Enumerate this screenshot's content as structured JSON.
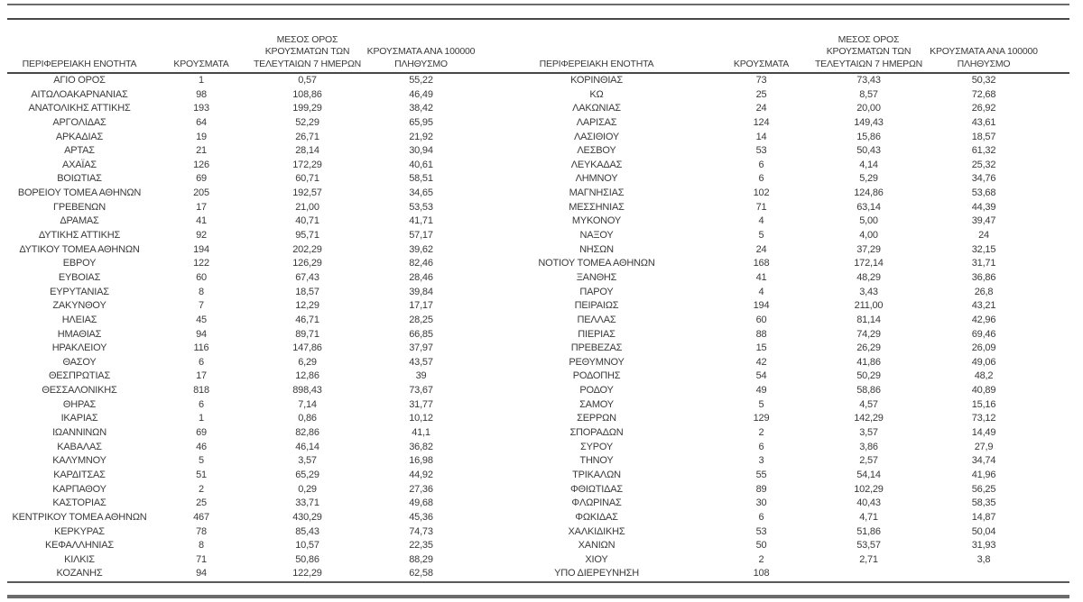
{
  "document": {
    "type": "regional-covid-cases-table",
    "language": "el"
  },
  "colors": {
    "text": "#3a3a3a",
    "rule_light": "#6b6b6b",
    "rule_dark": "#474747",
    "table_bottom_rule": "#5a5a5a",
    "background": "#ffffff"
  },
  "table": {
    "left_header": {
      "region": "ΠΕΡΙΦΕΡΕΙΑΚΗ ΕΝΟΤΗΤΑ",
      "cases": "ΚΡΟΥΣΜΑΤΑ",
      "avg7": "ΜΕΣΟΣ ΟΡΟΣ\nΚΡΟΥΣΜΑΤΩΝ ΤΩΝ\nΤΕΛΕΥΤΑΙΩΝ 7 ΗΜΕΡΩΝ",
      "per100k": "ΚΡΟΥΣΜΑΤΑ ΑΝΑ 100000\nΠΛΗΘΥΣΜΟ"
    },
    "right_header": {
      "region": "ΠΕΡΙΦΕΡΕΙΑΚΗ ΕΝΟΤΗΤΑ",
      "cases": "ΚΡΟΥΣΜΑΤΑ",
      "avg7": "ΜΕΣΟΣ ΟΡΟΣ\nΚΡΟΥΣΜΑΤΩΝ ΤΩΝ\nΤΕΛΕΥΤΑΙΩΝ 7 ΗΜΕΡΩΝ",
      "per100k": "ΚΡΟΥΣΜΑΤΑ ΑΝΑ 100000\nΠΛΗΘΥΣΜΟ"
    },
    "rows": [
      {
        "left": [
          "ΑΓΙΟ ΟΡΟΣ",
          "1",
          "0,57",
          "55,22"
        ],
        "right": [
          "ΚΟΡΙΝΘΙΑΣ",
          "73",
          "73,43",
          "50,32"
        ]
      },
      {
        "left": [
          "ΑΙΤΩΛΟΑΚΑΡΝΑΝΙΑΣ",
          "98",
          "108,86",
          "46,49"
        ],
        "right": [
          "ΚΩ",
          "25",
          "8,57",
          "72,68"
        ]
      },
      {
        "left": [
          "ΑΝΑΤΟΛΙΚΗΣ ΑΤΤΙΚΗΣ",
          "193",
          "199,29",
          "38,42"
        ],
        "right": [
          "ΛΑΚΩΝΙΑΣ",
          "24",
          "20,00",
          "26,92"
        ]
      },
      {
        "left": [
          "ΑΡΓΟΛΙΔΑΣ",
          "64",
          "52,29",
          "65,95"
        ],
        "right": [
          "ΛΑΡΙΣΑΣ",
          "124",
          "149,43",
          "43,61"
        ]
      },
      {
        "left": [
          "ΑΡΚΑΔΙΑΣ",
          "19",
          "26,71",
          "21,92"
        ],
        "right": [
          "ΛΑΣΙΘΙΟΥ",
          "14",
          "15,86",
          "18,57"
        ]
      },
      {
        "left": [
          "ΑΡΤΑΣ",
          "21",
          "28,14",
          "30,94"
        ],
        "right": [
          "ΛΕΣΒΟΥ",
          "53",
          "50,43",
          "61,32"
        ]
      },
      {
        "left": [
          "ΑΧΑΪΑΣ",
          "126",
          "172,29",
          "40,61"
        ],
        "right": [
          "ΛΕΥΚΑΔΑΣ",
          "6",
          "4,14",
          "25,32"
        ]
      },
      {
        "left": [
          "ΒΟΙΩΤΙΑΣ",
          "69",
          "60,71",
          "58,51"
        ],
        "right": [
          "ΛΗΜΝΟΥ",
          "6",
          "5,29",
          "34,76"
        ]
      },
      {
        "left": [
          "ΒΟΡΕΙΟΥ ΤΟΜΕΑ ΑΘΗΝΩΝ",
          "205",
          "192,57",
          "34,65"
        ],
        "right": [
          "ΜΑΓΝΗΣΙΑΣ",
          "102",
          "124,86",
          "53,68"
        ]
      },
      {
        "left": [
          "ΓΡΕΒΕΝΩΝ",
          "17",
          "21,00",
          "53,53"
        ],
        "right": [
          "ΜΕΣΣΗΝΙΑΣ",
          "71",
          "63,14",
          "44,39"
        ]
      },
      {
        "left": [
          "ΔΡΑΜΑΣ",
          "41",
          "40,71",
          "41,71"
        ],
        "right": [
          "ΜΥΚΟΝΟΥ",
          "4",
          "5,00",
          "39,47"
        ]
      },
      {
        "left": [
          "ΔΥΤΙΚΗΣ ΑΤΤΙΚΗΣ",
          "92",
          "95,71",
          "57,17"
        ],
        "right": [
          "ΝΑΞΟΥ",
          "5",
          "4,00",
          "24"
        ]
      },
      {
        "left": [
          "ΔΥΤΙΚΟΥ ΤΟΜΕΑ ΑΘΗΝΩΝ",
          "194",
          "202,29",
          "39,62"
        ],
        "right": [
          "ΝΗΣΩΝ",
          "24",
          "37,29",
          "32,15"
        ]
      },
      {
        "left": [
          "ΕΒΡΟΥ",
          "122",
          "126,29",
          "82,46"
        ],
        "right": [
          "ΝΟΤΙΟΥ ΤΟΜΕΑ ΑΘΗΝΩΝ",
          "168",
          "172,14",
          "31,71"
        ]
      },
      {
        "left": [
          "ΕΥΒΟΙΑΣ",
          "60",
          "67,43",
          "28,46"
        ],
        "right": [
          "ΞΑΝΘΗΣ",
          "41",
          "48,29",
          "36,86"
        ]
      },
      {
        "left": [
          "ΕΥΡΥΤΑΝΙΑΣ",
          "8",
          "18,57",
          "39,84"
        ],
        "right": [
          "ΠΑΡΟΥ",
          "4",
          "3,43",
          "26,8"
        ]
      },
      {
        "left": [
          "ΖΑΚΥΝΘΟΥ",
          "7",
          "12,29",
          "17,17"
        ],
        "right": [
          "ΠΕΙΡΑΙΩΣ",
          "194",
          "211,00",
          "43,21"
        ]
      },
      {
        "left": [
          "ΗΛΕΙΑΣ",
          "45",
          "46,71",
          "28,25"
        ],
        "right": [
          "ΠΕΛΛΑΣ",
          "60",
          "81,14",
          "42,96"
        ]
      },
      {
        "left": [
          "ΗΜΑΘΙΑΣ",
          "94",
          "89,71",
          "66,85"
        ],
        "right": [
          "ΠΙΕΡΙΑΣ",
          "88",
          "74,29",
          "69,46"
        ]
      },
      {
        "left": [
          "ΗΡΑΚΛΕΙΟΥ",
          "116",
          "147,86",
          "37,97"
        ],
        "right": [
          "ΠΡΕΒΕΖΑΣ",
          "15",
          "26,29",
          "26,09"
        ]
      },
      {
        "left": [
          "ΘΑΣΟΥ",
          "6",
          "6,29",
          "43,57"
        ],
        "right": [
          "ΡΕΘΥΜΝΟΥ",
          "42",
          "41,86",
          "49,06"
        ]
      },
      {
        "left": [
          "ΘΕΣΠΡΩΤΙΑΣ",
          "17",
          "12,86",
          "39"
        ],
        "right": [
          "ΡΟΔΟΠΗΣ",
          "54",
          "50,29",
          "48,2"
        ]
      },
      {
        "left": [
          "ΘΕΣΣΑΛΟΝΙΚΗΣ",
          "818",
          "898,43",
          "73,67"
        ],
        "right": [
          "ΡΟΔΟΥ",
          "49",
          "58,86",
          "40,89"
        ]
      },
      {
        "left": [
          "ΘΗΡΑΣ",
          "6",
          "7,14",
          "31,77"
        ],
        "right": [
          "ΣΑΜΟΥ",
          "5",
          "4,57",
          "15,16"
        ]
      },
      {
        "left": [
          "ΙΚΑΡΙΑΣ",
          "1",
          "0,86",
          "10,12"
        ],
        "right": [
          "ΣΕΡΡΩΝ",
          "129",
          "142,29",
          "73,12"
        ]
      },
      {
        "left": [
          "ΙΩΑΝΝΙΝΩΝ",
          "69",
          "82,86",
          "41,1"
        ],
        "right": [
          "ΣΠΟΡΑΔΩΝ",
          "2",
          "3,57",
          "14,49"
        ]
      },
      {
        "left": [
          "ΚΑΒΑΛΑΣ",
          "46",
          "46,14",
          "36,82"
        ],
        "right": [
          "ΣΥΡΟΥ",
          "6",
          "3,86",
          "27,9"
        ]
      },
      {
        "left": [
          "ΚΑΛΥΜΝΟΥ",
          "5",
          "3,57",
          "16,98"
        ],
        "right": [
          "ΤΗΝΟΥ",
          "3",
          "2,57",
          "34,74"
        ]
      },
      {
        "left": [
          "ΚΑΡΔΙΤΣΑΣ",
          "51",
          "65,29",
          "44,92"
        ],
        "right": [
          "ΤΡΙΚΑΛΩΝ",
          "55",
          "54,14",
          "41,96"
        ]
      },
      {
        "left": [
          "ΚΑΡΠΑΘΟΥ",
          "2",
          "0,29",
          "27,36"
        ],
        "right": [
          "ΦΘΙΩΤΙΔΑΣ",
          "89",
          "102,29",
          "56,25"
        ]
      },
      {
        "left": [
          "ΚΑΣΤΟΡΙΑΣ",
          "25",
          "33,71",
          "49,68"
        ],
        "right": [
          "ΦΛΩΡΙΝΑΣ",
          "30",
          "40,43",
          "58,35"
        ]
      },
      {
        "left": [
          "ΚΕΝΤΡΙΚΟΥ ΤΟΜΕΑ ΑΘΗΝΩΝ",
          "467",
          "430,29",
          "45,36"
        ],
        "right": [
          "ΦΩΚΙΔΑΣ",
          "6",
          "4,71",
          "14,87"
        ]
      },
      {
        "left": [
          "ΚΕΡΚΥΡΑΣ",
          "78",
          "85,43",
          "74,73"
        ],
        "right": [
          "ΧΑΛΚΙΔΙΚΗΣ",
          "53",
          "51,86",
          "50,04"
        ]
      },
      {
        "left": [
          "ΚΕΦΑΛΛΗΝΙΑΣ",
          "8",
          "10,57",
          "22,35"
        ],
        "right": [
          "ΧΑΝΙΩΝ",
          "50",
          "53,57",
          "31,93"
        ]
      },
      {
        "left": [
          "ΚΙΛΚΙΣ",
          "71",
          "50,86",
          "88,29"
        ],
        "right": [
          "ΧΙΟΥ",
          "2",
          "2,71",
          "3,8"
        ]
      },
      {
        "left": [
          "ΚΟΖΑΝΗΣ",
          "94",
          "122,29",
          "62,58"
        ],
        "right": [
          "ΥΠΟ ΔΙΕΡΕΥΝΗΣΗ",
          "108",
          "",
          ""
        ]
      }
    ]
  }
}
